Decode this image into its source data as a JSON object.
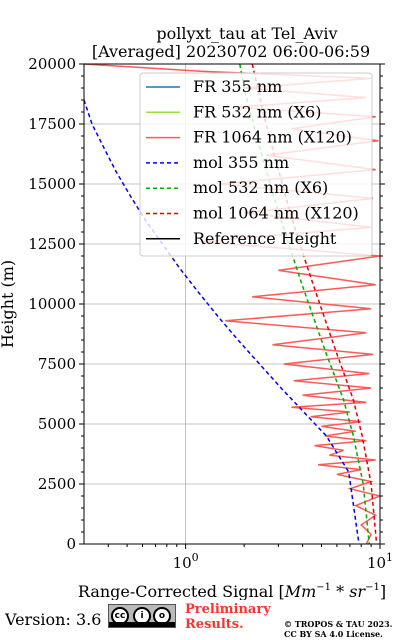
{
  "chart_data": {
    "type": "line",
    "title_line1": "pollyxt_tau at Tel_Aviv",
    "title_line2": "[Averaged] 20230702 06:00-06:59",
    "xlabel": "Range-Corrected Signal [$Mm^{-1}*sr^{-1}$]",
    "xlabel_plain": "Range-Corrected Signal [",
    "xlabel_math": "Mm",
    "xlabel_sup1": "−1",
    "xlabel_mult": " * ",
    "xlabel_math2": "sr",
    "xlabel_sup2": "−1",
    "xlabel_close": "]",
    "ylabel": "Height (m)",
    "xscale": "log",
    "xlim": [
      0.3,
      10
    ],
    "ylim": [
      0,
      20000
    ],
    "y_ticks": [
      0,
      2500,
      5000,
      7500,
      10000,
      12500,
      15000,
      17500,
      20000
    ],
    "y_tick_labels": [
      "0",
      "2500",
      "5000",
      "7500",
      "10000",
      "12500",
      "15000",
      "17500",
      "20000"
    ],
    "x_ticks": [
      1,
      10
    ],
    "x_tick_base": "10",
    "x_tick_exps": [
      "0",
      "1"
    ],
    "grid": true,
    "legend_position": "top-right",
    "series": [
      {
        "name": "FR 355 nm",
        "color": "#1f77b4",
        "style": "solid",
        "values": []
      },
      {
        "name": "FR 532 nm (X6)",
        "color": "#98e040",
        "style": "solid",
        "values": []
      },
      {
        "name": "FR 1064 nm (X120)",
        "color": "#ff5a5a",
        "style": "solid",
        "x": [
          0.3,
          1.2,
          9.0,
          2.0,
          8.5,
          1.8,
          9.5,
          3.5,
          9.8,
          2.6,
          9.5,
          1.5,
          9.2,
          2.0,
          9.0,
          1.2,
          10.0,
          3.0,
          9.5,
          2.2,
          9.0,
          1.6,
          8.5,
          2.8,
          9.2,
          3.2,
          8.8,
          3.6,
          9.0,
          4.0,
          8.5,
          3.5,
          7.0,
          4.4,
          8.0,
          5.0,
          7.5,
          5.2,
          8.5,
          4.6,
          6.5,
          5.5,
          9.5,
          4.8,
          8.0,
          6.0,
          9.0,
          7.0,
          10.0,
          7.5,
          9.5,
          8.0,
          9.0,
          8.5
        ],
        "y": [
          20000,
          19700,
          19400,
          19000,
          18600,
          18200,
          17800,
          17300,
          16800,
          16200,
          15600,
          15000,
          14400,
          13800,
          13200,
          12600,
          12000,
          11400,
          10800,
          10300,
          9800,
          9300,
          8800,
          8300,
          7900,
          7500,
          7100,
          6800,
          6500,
          6200,
          5900,
          5700,
          5500,
          5300,
          5100,
          4900,
          4700,
          4500,
          4300,
          4100,
          3900,
          3700,
          3500,
          3300,
          3100,
          2900,
          2600,
          2300,
          2000,
          1600,
          1200,
          800,
          400,
          0
        ]
      },
      {
        "name": "mol 355 nm",
        "color": "#0000ee",
        "style": "dashed",
        "x": [
          0.3,
          0.33,
          0.38,
          0.44,
          0.52,
          0.62,
          0.76,
          0.93,
          1.16,
          1.46,
          1.86,
          2.4,
          3.1,
          4.05,
          5.3,
          6.9,
          7.8
        ],
        "y": [
          18500,
          17500,
          16500,
          15500,
          14500,
          13500,
          12500,
          11500,
          10500,
          9500,
          8500,
          7500,
          6500,
          5500,
          4500,
          3000,
          0
        ]
      },
      {
        "name": "mol 532 nm (X6)",
        "color": "#00aa00",
        "style": "dashed",
        "x": [
          1.9,
          2.0,
          2.15,
          2.32,
          2.5,
          2.72,
          2.96,
          3.24,
          3.55,
          3.9,
          4.3,
          4.75,
          5.25,
          5.85,
          6.5,
          7.3,
          8.2,
          8.8
        ],
        "y": [
          20000,
          19000,
          18000,
          17000,
          16000,
          15000,
          14000,
          13000,
          12000,
          11000,
          10000,
          9000,
          8000,
          7000,
          6000,
          4500,
          2500,
          0
        ]
      },
      {
        "name": "mol 1064 nm (X120)",
        "color": "#dd0000",
        "style": "dashed",
        "x": [
          2.2,
          2.35,
          2.5,
          2.7,
          2.9,
          3.15,
          3.4,
          3.7,
          4.05,
          4.45,
          4.9,
          5.4,
          5.95,
          6.6,
          7.3,
          8.1,
          9.0,
          9.6
        ],
        "y": [
          20000,
          19000,
          18000,
          17000,
          16000,
          15000,
          14000,
          13000,
          12000,
          11000,
          10000,
          9000,
          8000,
          7000,
          6000,
          4500,
          2500,
          0
        ]
      },
      {
        "name": "Reference Height",
        "color": "#000000",
        "style": "solid",
        "values": []
      }
    ]
  },
  "footer": {
    "version": "Version: 3.6",
    "cc_glyphs": [
      "cc",
      "i",
      "o"
    ],
    "preliminary_line1": "Preliminary",
    "preliminary_line2": "Results.",
    "copyright_line1": "© TROPOS & TAU 2023.",
    "copyright_line2": "CC BY SA 4.0 License."
  }
}
